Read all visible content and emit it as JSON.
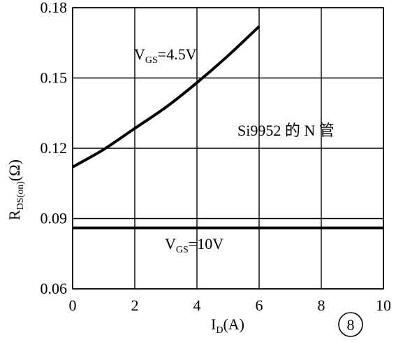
{
  "chart_data": {
    "type": "line",
    "title": "",
    "xlabel": {
      "main": "I",
      "sub": "D",
      "rest": "(A)"
    },
    "ylabel": {
      "main": "R",
      "sub": "DS(on)",
      "rest": "(Ω)"
    },
    "xlim": [
      0,
      10
    ],
    "ylim": [
      0.06,
      0.18
    ],
    "x_ticks": [
      0,
      2,
      4,
      6,
      8,
      10
    ],
    "y_ticks": [
      0.06,
      0.09,
      0.12,
      0.15,
      0.18
    ],
    "x_tick_labels": [
      "0",
      "2",
      "4",
      "6",
      "8",
      "10"
    ],
    "y_tick_labels": [
      "0.06",
      "0.09",
      "0.12",
      "0.15",
      "0.18"
    ],
    "grid": true,
    "series": [
      {
        "name": "VGS=4.5V",
        "label": {
          "main": "V",
          "sub": "GS",
          "rest": "=4.5V"
        },
        "x": [
          0,
          1,
          2,
          3,
          4,
          5,
          6
        ],
        "y": [
          0.112,
          0.1195,
          0.1285,
          0.1375,
          0.148,
          0.1595,
          0.172
        ],
        "stroke": "#000000"
      },
      {
        "name": "VGS=10V",
        "label": {
          "main": "V",
          "sub": "GS",
          "rest": "=10V"
        },
        "x": [
          0,
          10
        ],
        "y": [
          0.086,
          0.086
        ],
        "stroke": "#000000"
      }
    ],
    "annotations": {
      "device": "Si9952 的 N 管",
      "figure_number": "8"
    }
  }
}
